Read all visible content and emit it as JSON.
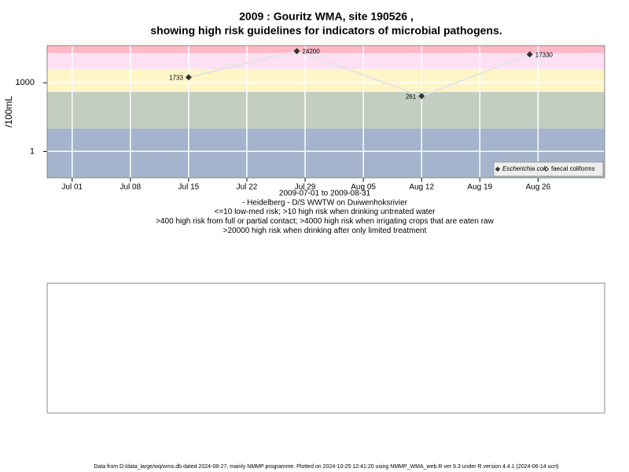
{
  "chart_data": {
    "type": "line",
    "title": [
      "2009 : Gouritz WMA, site 190526 ,",
      "showing high risk guidelines for indicators of microbial pathogens."
    ],
    "ylabel": "/100mL",
    "x": [
      "Jul 15",
      "Jul 28",
      "Aug 12",
      "Aug 25"
    ],
    "series": [
      {
        "name": "Escherichia coli",
        "color": "#333333",
        "line_color": "#e4e4e4",
        "values": [
          1733,
          24200,
          261,
          17330
        ]
      },
      {
        "name": "faecal coliforms",
        "color": "#333333",
        "values": [
          null,
          null,
          null,
          null
        ]
      }
    ],
    "xlim": [
      "Jun 28",
      "Sep 03"
    ],
    "xticks": [
      "Jul 01",
      "Jul 08",
      "Jul 15",
      "Jul 22",
      "Jul 29",
      "Aug 05",
      "Aug 12",
      "Aug 19",
      "Aug 26"
    ],
    "ylim": [
      0.07,
      42000
    ],
    "yticks": [
      1,
      1000
    ],
    "log_y": true,
    "grid": true,
    "bands": {
      "thresholds": [
        10,
        400,
        4000,
        20000
      ],
      "colors": [
        "#a3b4cc",
        "#c3cdc0",
        "#fff5c6",
        "#fde0f3",
        "#ffb8c6"
      ]
    },
    "legend": "bottom-right",
    "notes": [
      "2009-07-01 to 2009-08-31",
      "- Heidelberg - D/S WWTW on Duiwenhoksrivier",
      "<=10 low-med risk; >10 high risk when drinking untreated water",
      ">400 high risk from full or partial contact; >4000 high risk when irrigating crops that are eaten raw",
      ">20000 high risk when drinking after only limited treatment"
    ],
    "footer": "Data from D:/data_large/wq/wms.db dated 2024-08-27, mainly NMMP programme. Plotted on 2024-10-25 12:41:20 using NMMP_WMA_web.R ver 9.3 under R version 4.4.1 (2024-06-14 ucrt)"
  }
}
